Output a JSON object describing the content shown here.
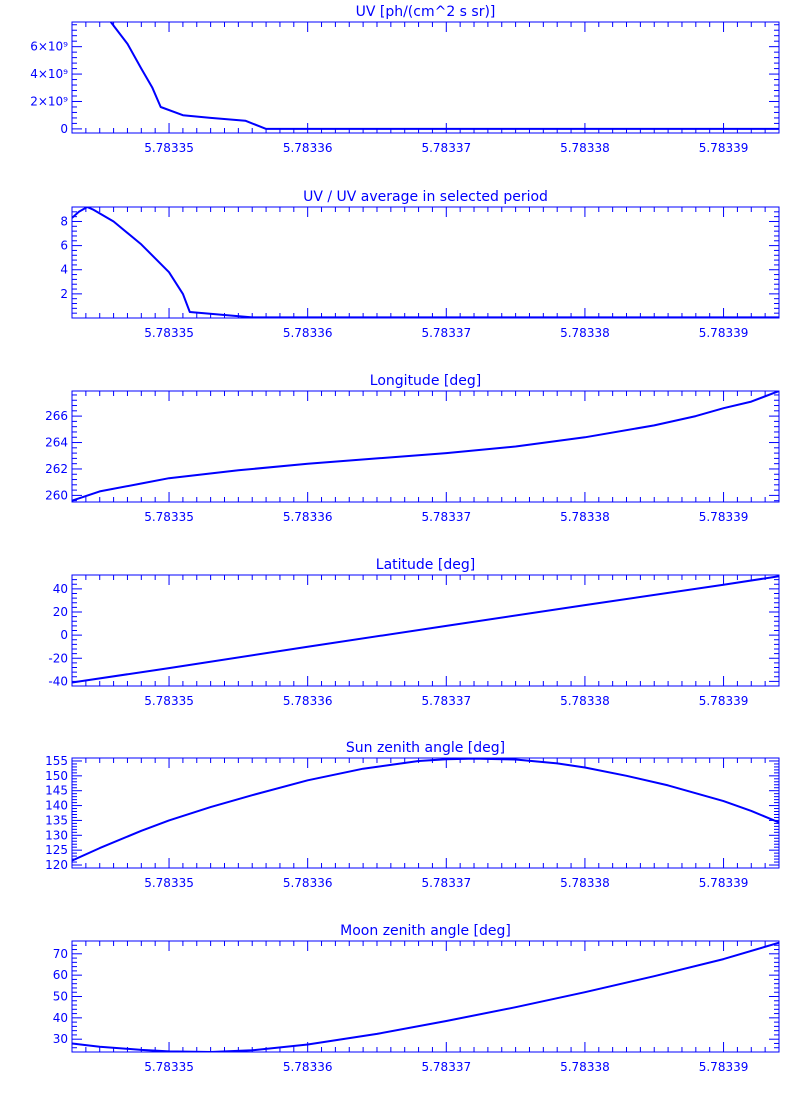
{
  "colors": {
    "ink": "#0000ff",
    "background": "#ffffff"
  },
  "x_ticks": {
    "values": [
      5.78335,
      5.78336,
      5.78337,
      5.78338,
      5.78339
    ],
    "labels": [
      "5.78335",
      "5.78336",
      "5.78337",
      "5.78338",
      "5.78339"
    ]
  },
  "chart_data": [
    {
      "type": "line",
      "title": "UV [ph/(cm^2 s sr)]",
      "xlabel": "",
      "ylabel": "",
      "xlim": [
        5.783343,
        5.783394
      ],
      "ylim": [
        -300000000,
        7800000000
      ],
      "grid": false,
      "y_ticks": [
        {
          "value": 0,
          "label": "0"
        },
        {
          "value": 2000000000,
          "label": "2×10⁹"
        },
        {
          "value": 4000000000,
          "label": "4×10⁹"
        },
        {
          "value": 6000000000,
          "label": "6×10⁹"
        }
      ],
      "series": [
        {
          "x": [
            5.7833458,
            5.783347,
            5.783348,
            5.7833488,
            5.7833494,
            5.783351,
            5.783353,
            5.7833555,
            5.783357,
            5.78339,
            5.783394
          ],
          "y": [
            7800000000,
            6200000000,
            4400000000,
            3000000000,
            1600000000,
            1000000000,
            800000000,
            600000000,
            0,
            0,
            0
          ]
        }
      ]
    },
    {
      "type": "line",
      "title": "UV / UV average in selected period",
      "xlabel": "",
      "ylabel": "",
      "xlim": [
        5.783343,
        5.783394
      ],
      "ylim": [
        0,
        9.2
      ],
      "grid": false,
      "y_ticks": [
        {
          "value": 2,
          "label": "2"
        },
        {
          "value": 4,
          "label": "4"
        },
        {
          "value": 6,
          "label": "6"
        },
        {
          "value": 8,
          "label": "8"
        }
      ],
      "series": [
        {
          "x": [
            5.783343,
            5.7833435,
            5.7833441,
            5.7833445,
            5.783346,
            5.783348,
            5.78335,
            5.783351,
            5.7833515,
            5.783354,
            5.783356,
            5.78339,
            5.783394
          ],
          "y": [
            8.3,
            8.8,
            9.2,
            9.0,
            8.0,
            6.1,
            3.8,
            2.0,
            0.5,
            0.25,
            0.05,
            0.05,
            0.05
          ]
        }
      ]
    },
    {
      "type": "line",
      "title": "Longitude [deg]",
      "xlabel": "",
      "ylabel": "",
      "xlim": [
        5.783343,
        5.783394
      ],
      "ylim": [
        259.5,
        267.9
      ],
      "grid": false,
      "y_ticks": [
        {
          "value": 260,
          "label": "260"
        },
        {
          "value": 262,
          "label": "262"
        },
        {
          "value": 264,
          "label": "264"
        },
        {
          "value": 266,
          "label": "266"
        }
      ],
      "series": [
        {
          "x": [
            5.783343,
            5.783345,
            5.783348,
            5.78335,
            5.783355,
            5.78336,
            5.783365,
            5.78337,
            5.783375,
            5.78338,
            5.783385,
            5.783388,
            5.78339,
            5.783392,
            5.783394
          ],
          "y": [
            259.6,
            260.3,
            260.9,
            261.3,
            261.9,
            262.4,
            262.8,
            263.2,
            263.7,
            264.4,
            265.3,
            266.0,
            266.6,
            267.1,
            267.9
          ]
        }
      ]
    },
    {
      "type": "line",
      "title": "Latitude [deg]",
      "xlabel": "",
      "ylabel": "",
      "xlim": [
        5.783343,
        5.783394
      ],
      "ylim": [
        -44,
        52
      ],
      "grid": false,
      "y_ticks": [
        {
          "value": -40,
          "label": "-40"
        },
        {
          "value": -20,
          "label": "-20"
        },
        {
          "value": 0,
          "label": "0"
        },
        {
          "value": 20,
          "label": "20"
        },
        {
          "value": 40,
          "label": "40"
        }
      ],
      "series": [
        {
          "x": [
            5.783343,
            5.78335,
            5.78336,
            5.78337,
            5.78338,
            5.78339,
            5.783394
          ],
          "y": [
            -41,
            -28.5,
            -10,
            8,
            26,
            43.5,
            51
          ]
        }
      ]
    },
    {
      "type": "line",
      "title": "Sun zenith angle [deg]",
      "xlabel": "",
      "ylabel": "",
      "xlim": [
        5.783343,
        5.783394
      ],
      "ylim": [
        119,
        156
      ],
      "grid": false,
      "y_ticks": [
        {
          "value": 120,
          "label": "120"
        },
        {
          "value": 125,
          "label": "125"
        },
        {
          "value": 130,
          "label": "130"
        },
        {
          "value": 135,
          "label": "135"
        },
        {
          "value": 140,
          "label": "140"
        },
        {
          "value": 145,
          "label": "145"
        },
        {
          "value": 150,
          "label": "150"
        },
        {
          "value": 155,
          "label": "155"
        }
      ],
      "series": [
        {
          "x": [
            5.783343,
            5.783345,
            5.783348,
            5.78335,
            5.783353,
            5.783356,
            5.78336,
            5.783364,
            5.783368,
            5.78337,
            5.783372,
            5.783375,
            5.783378,
            5.78338,
            5.783383,
            5.783386,
            5.78339,
            5.783392,
            5.783394
          ],
          "y": [
            121.5,
            125.7,
            131.5,
            135.0,
            139.5,
            143.5,
            148.5,
            152.4,
            155.0,
            155.6,
            155.8,
            155.5,
            154.2,
            152.8,
            150.0,
            146.8,
            141.5,
            138.2,
            134.3
          ]
        }
      ]
    },
    {
      "type": "line",
      "title": "Moon zenith angle [deg]",
      "xlabel": "",
      "ylabel": "",
      "xlim": [
        5.783343,
        5.783394
      ],
      "ylim": [
        24,
        76
      ],
      "grid": false,
      "y_ticks": [
        {
          "value": 30,
          "label": "30"
        },
        {
          "value": 40,
          "label": "40"
        },
        {
          "value": 50,
          "label": "50"
        },
        {
          "value": 60,
          "label": "60"
        },
        {
          "value": 70,
          "label": "70"
        }
      ],
      "series": [
        {
          "x": [
            5.783343,
            5.783345,
            5.783348,
            5.78335,
            5.783353,
            5.783356,
            5.78336,
            5.783365,
            5.78337,
            5.783375,
            5.78338,
            5.783385,
            5.78339,
            5.783394
          ],
          "y": [
            28.0,
            26.5,
            25.0,
            24.3,
            24.0,
            24.8,
            27.5,
            32.5,
            38.5,
            45.0,
            52.0,
            59.5,
            67.5,
            75.2
          ]
        }
      ]
    }
  ]
}
